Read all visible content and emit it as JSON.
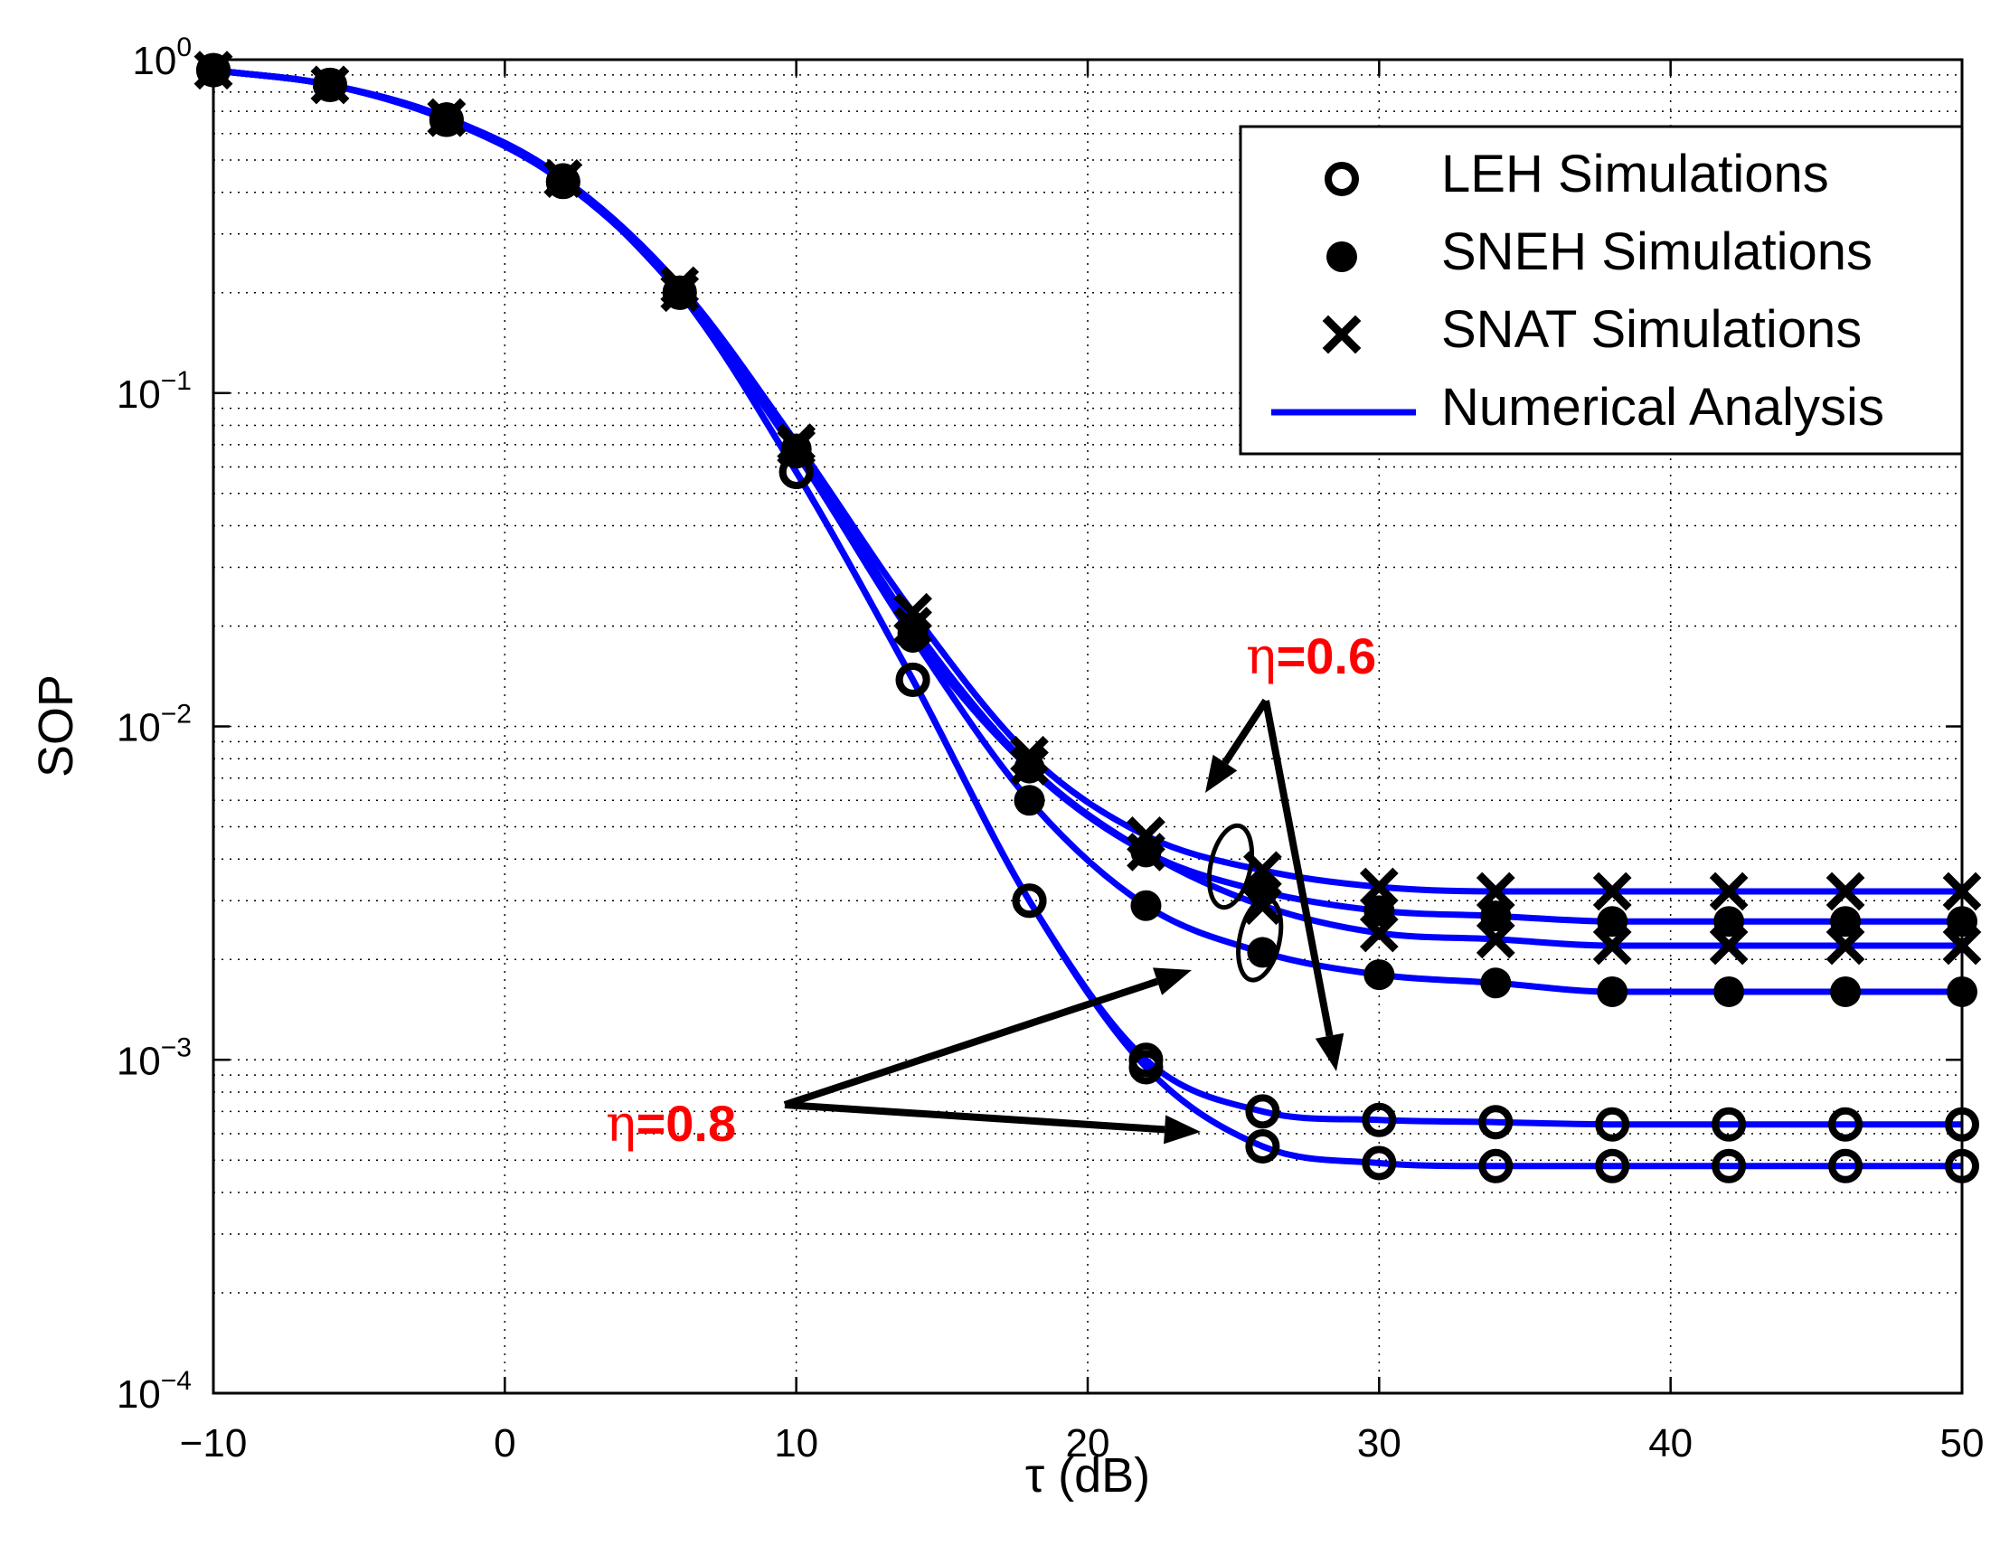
{
  "chart_data": {
    "type": "line",
    "title": "",
    "xlabel": "τ (dB)",
    "ylabel": "SOP",
    "xscale": "linear",
    "yscale": "log",
    "xlim": [
      -10,
      50
    ],
    "ylim": [
      0.0001,
      1
    ],
    "grid": true,
    "legend_position": "top-right",
    "x_ticks": [
      -10,
      0,
      10,
      20,
      30,
      40,
      50
    ],
    "x_tick_labels": [
      "−10",
      "0",
      "10",
      "20",
      "30",
      "40",
      "50"
    ],
    "y_ticks": [
      {
        "base": "10",
        "exp": "−4",
        "value": 0.0001
      },
      {
        "base": "10",
        "exp": "−3",
        "value": 0.001
      },
      {
        "base": "10",
        "exp": "−2",
        "value": 0.01
      },
      {
        "base": "10",
        "exp": "−1",
        "value": 0.1
      },
      {
        "base": "10",
        "exp": "0",
        "value": 1
      }
    ],
    "colors": {
      "line": "#0000ff",
      "annotation": "#ff0000",
      "marker": "#000000"
    },
    "legend": [
      {
        "label": "LEH Simulations",
        "marker": "open-circle"
      },
      {
        "label": "SNEH Simulations",
        "marker": "filled-circle"
      },
      {
        "label": "SNAT Simulations",
        "marker": "x"
      },
      {
        "label": "Numerical Analysis",
        "marker": "line"
      }
    ],
    "x": [
      -10,
      -6,
      -2,
      2,
      6,
      10,
      14,
      18,
      22,
      26,
      30,
      34,
      38,
      42,
      46,
      50
    ],
    "series": [
      {
        "name": "Numerical Analysis (LEH, η=0.6)",
        "scheme": "LEH",
        "eta": 0.6,
        "marker": "open-circle",
        "values": [
          0.93,
          0.84,
          0.66,
          0.43,
          0.2,
          0.058,
          0.0138,
          0.003,
          0.001,
          0.0007,
          0.00066,
          0.00065,
          0.00064,
          0.00064,
          0.00064,
          0.00064
        ]
      },
      {
        "name": "Numerical Analysis (LEH, η=0.8)",
        "scheme": "LEH",
        "eta": 0.8,
        "marker": "open-circle",
        "values": [
          0.93,
          0.84,
          0.66,
          0.43,
          0.2,
          0.058,
          0.0138,
          0.003,
          0.00095,
          0.00055,
          0.00049,
          0.00048,
          0.00048,
          0.00048,
          0.00048,
          0.00048
        ]
      },
      {
        "name": "Numerical Analysis (SNEH, η=0.6)",
        "scheme": "SNEH",
        "eta": 0.6,
        "marker": "filled-circle",
        "values": [
          0.93,
          0.84,
          0.67,
          0.44,
          0.2,
          0.068,
          0.019,
          0.0075,
          0.0042,
          0.0032,
          0.0028,
          0.0027,
          0.0026,
          0.0026,
          0.0026,
          0.0026
        ]
      },
      {
        "name": "Numerical Analysis (SNEH, η=0.8)",
        "scheme": "SNEH",
        "eta": 0.8,
        "marker": "filled-circle",
        "values": [
          0.93,
          0.84,
          0.67,
          0.44,
          0.2,
          0.066,
          0.0185,
          0.006,
          0.0029,
          0.0021,
          0.0018,
          0.0017,
          0.0016,
          0.0016,
          0.0016,
          0.0016
        ]
      },
      {
        "name": "Numerical Analysis (SNAT, η=0.6)",
        "scheme": "SNAT",
        "eta": 0.6,
        "marker": "x",
        "values": [
          0.93,
          0.84,
          0.67,
          0.44,
          0.21,
          0.071,
          0.022,
          0.0082,
          0.0047,
          0.0037,
          0.0033,
          0.0032,
          0.0032,
          0.0032,
          0.0032,
          0.0032
        ]
      },
      {
        "name": "Numerical Analysis (SNAT, η=0.8)",
        "scheme": "SNAT",
        "eta": 0.8,
        "marker": "x",
        "values": [
          0.93,
          0.84,
          0.67,
          0.44,
          0.2,
          0.069,
          0.02,
          0.0076,
          0.0042,
          0.0029,
          0.0024,
          0.0023,
          0.0022,
          0.0022,
          0.0022,
          0.0022
        ]
      }
    ],
    "annotations": [
      {
        "eta_symbol": "η",
        "value_text": "=0.6",
        "text": "η=0.6"
      },
      {
        "eta_symbol": "η",
        "value_text": "=0.8",
        "text": "η=0.8"
      }
    ]
  }
}
